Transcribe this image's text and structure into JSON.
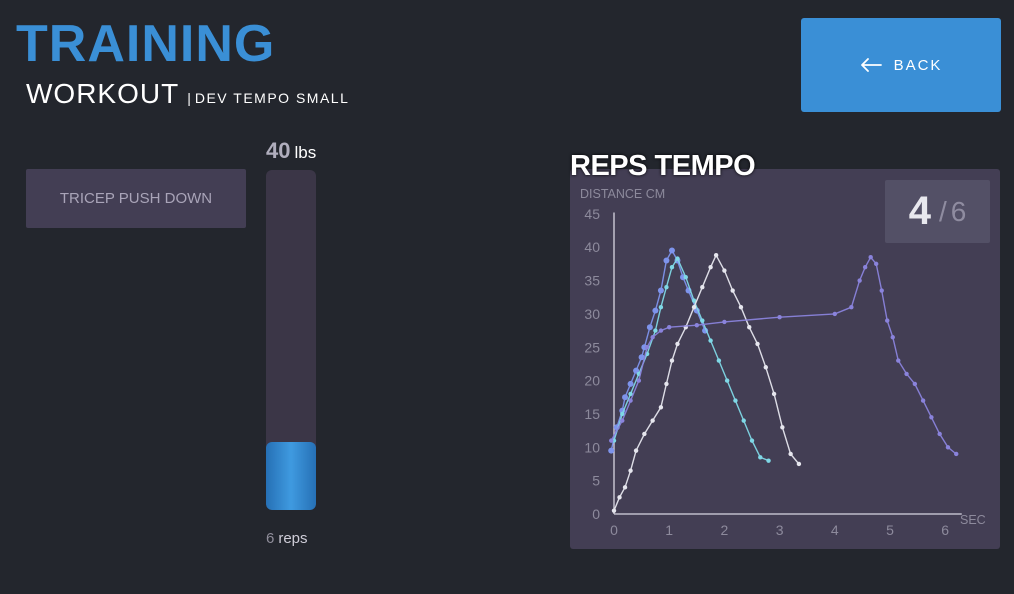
{
  "header": {
    "title": "TRAINING",
    "subtitle": "WORKOUT",
    "separator": "|",
    "program": "DEV TEMPO SMALL"
  },
  "back_button": {
    "label": "BACK"
  },
  "exercise": {
    "label": "TRICEP PUSH DOWN"
  },
  "weight": {
    "value": "40",
    "unit": "lbs"
  },
  "reps": {
    "value": "6",
    "unit": "reps",
    "progress_fraction": 0.2
  },
  "counter": {
    "current": "4",
    "separator": "/",
    "total": "6"
  },
  "colors": {
    "accent": "#3a8fd6",
    "panel": "#433e54",
    "background": "#23262d",
    "series_blue": "#7e94ec",
    "series_cyan": "#7fd8e6",
    "series_white": "#e6e6ee",
    "series_purple": "#8a83dc"
  },
  "chart_data": {
    "type": "line",
    "title": "REPS TEMPO",
    "xlabel": "SEC",
    "ylabel": "DISTANCE CM",
    "xlim": [
      0,
      6.3
    ],
    "ylim": [
      0,
      46
    ],
    "x_ticks": [
      0,
      1,
      2,
      3,
      4,
      5,
      6
    ],
    "y_ticks": [
      0,
      5,
      10,
      15,
      20,
      25,
      30,
      35,
      40,
      45
    ],
    "grid": false,
    "legend": "none",
    "series": [
      {
        "color": "#7e94ec",
        "marker_size": 3,
        "points": [
          [
            -0.05,
            9.5
          ],
          [
            0.05,
            13
          ],
          [
            0.15,
            15.5
          ],
          [
            0.2,
            17.5
          ],
          [
            0.3,
            19.5
          ],
          [
            0.4,
            21.5
          ],
          [
            0.5,
            23.5
          ],
          [
            0.55,
            25
          ],
          [
            0.65,
            28
          ],
          [
            0.75,
            30.5
          ],
          [
            0.85,
            33.5
          ],
          [
            0.95,
            38
          ],
          [
            1.05,
            39.5
          ],
          [
            1.15,
            38
          ],
          [
            1.25,
            35.5
          ],
          [
            1.35,
            33.5
          ],
          [
            1.5,
            30.5
          ],
          [
            1.65,
            27.5
          ]
        ]
      },
      {
        "color": "#7fd8e6",
        "marker_size": 2.2,
        "points": [
          [
            0,
            11
          ],
          [
            0.15,
            15
          ],
          [
            0.3,
            18
          ],
          [
            0.45,
            21
          ],
          [
            0.6,
            24
          ],
          [
            0.75,
            27.5
          ],
          [
            0.85,
            31
          ],
          [
            0.95,
            34
          ],
          [
            1.05,
            37
          ],
          [
            1.15,
            38.3
          ],
          [
            1.3,
            35.5
          ],
          [
            1.45,
            32
          ],
          [
            1.6,
            29
          ],
          [
            1.75,
            26
          ],
          [
            1.9,
            23
          ],
          [
            2.05,
            20
          ],
          [
            2.2,
            17
          ],
          [
            2.35,
            14
          ],
          [
            2.5,
            11
          ],
          [
            2.65,
            8.5
          ],
          [
            2.8,
            8
          ]
        ]
      },
      {
        "color": "#e6e6ee",
        "marker_size": 2.2,
        "points": [
          [
            0,
            0.5
          ],
          [
            0.1,
            2.5
          ],
          [
            0.2,
            4
          ],
          [
            0.3,
            6.5
          ],
          [
            0.4,
            9.5
          ],
          [
            0.55,
            12
          ],
          [
            0.7,
            14
          ],
          [
            0.85,
            16
          ],
          [
            0.95,
            19.5
          ],
          [
            1.05,
            23
          ],
          [
            1.15,
            25.5
          ],
          [
            1.3,
            28
          ],
          [
            1.45,
            31
          ],
          [
            1.6,
            34
          ],
          [
            1.75,
            37
          ],
          [
            1.85,
            38.8
          ],
          [
            2.0,
            36.5
          ],
          [
            2.15,
            33.5
          ],
          [
            2.3,
            31
          ],
          [
            2.45,
            28
          ],
          [
            2.6,
            25.5
          ],
          [
            2.75,
            22
          ],
          [
            2.9,
            18
          ],
          [
            3.05,
            13
          ],
          [
            3.2,
            9
          ],
          [
            3.35,
            7.5
          ]
        ]
      },
      {
        "color": "#8a83dc",
        "marker_size": 2.2,
        "points": [
          [
            -0.05,
            11
          ],
          [
            0.15,
            14
          ],
          [
            0.3,
            17
          ],
          [
            0.45,
            20
          ],
          [
            0.6,
            25
          ],
          [
            0.7,
            26.5
          ],
          [
            0.85,
            27.5
          ],
          [
            1.0,
            28
          ],
          [
            1.5,
            28.3
          ],
          [
            2.0,
            28.8
          ],
          [
            3.0,
            29.5
          ],
          [
            4.0,
            30
          ],
          [
            4.3,
            31
          ],
          [
            4.45,
            35
          ],
          [
            4.55,
            37
          ],
          [
            4.65,
            38.5
          ],
          [
            4.75,
            37.5
          ],
          [
            4.85,
            33.5
          ],
          [
            4.95,
            29
          ],
          [
            5.05,
            26.5
          ],
          [
            5.15,
            23
          ],
          [
            5.3,
            21
          ],
          [
            5.45,
            19.5
          ],
          [
            5.6,
            17
          ],
          [
            5.75,
            14.5
          ],
          [
            5.9,
            12
          ],
          [
            6.05,
            10
          ],
          [
            6.2,
            9
          ]
        ]
      }
    ]
  }
}
